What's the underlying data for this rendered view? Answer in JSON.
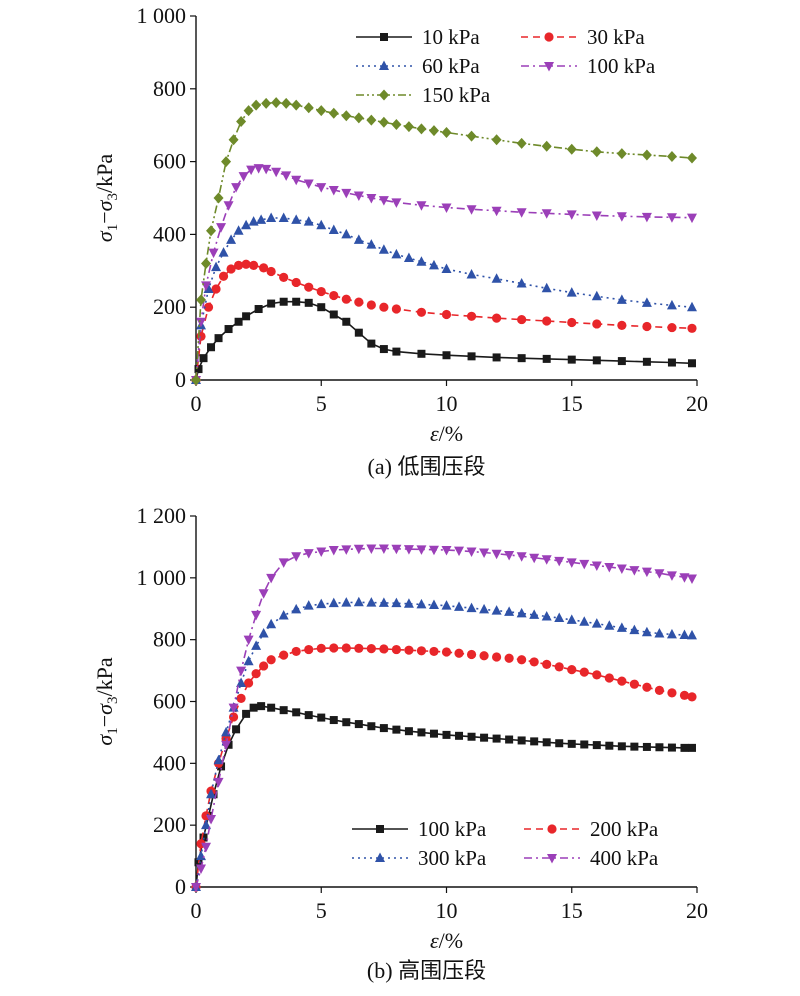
{
  "chart_data": [
    {
      "type": "line",
      "caption": "(a) 低围压段",
      "xlabel": "ε/%",
      "ylabel": "σ1−σ3/kPa",
      "xlim": [
        0,
        20
      ],
      "ylim": [
        0,
        1000
      ],
      "xticks": [
        "0",
        "5",
        "10",
        "15",
        "20"
      ],
      "yticks": [
        "0",
        "200",
        "400",
        "600",
        "800",
        "1 000"
      ],
      "legend_position": "top-right",
      "grid": false,
      "series": [
        {
          "name": "10 kPa",
          "color": "#1a1a1a",
          "marker": "square",
          "dash": "solid",
          "x": [
            0,
            0.1,
            0.3,
            0.6,
            0.9,
            1.3,
            1.7,
            2.0,
            2.5,
            3.0,
            3.5,
            4.0,
            4.5,
            5.0,
            5.5,
            6.0,
            6.5,
            7.0,
            7.5,
            8.0,
            9.0,
            10.0,
            11.0,
            12.0,
            13.0,
            14.0,
            15.0,
            16.0,
            17.0,
            18.0,
            19.0,
            19.8
          ],
          "y": [
            0,
            30,
            60,
            90,
            115,
            140,
            160,
            175,
            195,
            210,
            215,
            215,
            212,
            200,
            180,
            160,
            130,
            100,
            85,
            78,
            72,
            68,
            65,
            62,
            60,
            58,
            56,
            54,
            52,
            50,
            48,
            46
          ]
        },
        {
          "name": "30 kPa",
          "color": "#e8262a",
          "marker": "circle",
          "dash": "dash",
          "x": [
            0,
            0.2,
            0.5,
            0.8,
            1.1,
            1.4,
            1.7,
            2.0,
            2.3,
            2.7,
            3.0,
            3.5,
            4.0,
            4.5,
            5.0,
            5.5,
            6.0,
            6.5,
            7.0,
            7.5,
            8.0,
            9.0,
            10.0,
            11.0,
            12.0,
            13.0,
            14.0,
            15.0,
            16.0,
            17.0,
            18.0,
            19.0,
            19.8
          ],
          "y": [
            0,
            120,
            200,
            250,
            285,
            305,
            315,
            318,
            315,
            308,
            298,
            282,
            268,
            255,
            243,
            232,
            222,
            214,
            206,
            200,
            195,
            186,
            180,
            175,
            170,
            166,
            162,
            158,
            154,
            150,
            147,
            144,
            142
          ]
        },
        {
          "name": "60 kPa",
          "color": "#2f52a8",
          "marker": "triangle-up",
          "dash": "dot",
          "x": [
            0,
            0.2,
            0.5,
            0.8,
            1.1,
            1.4,
            1.7,
            2.0,
            2.3,
            2.6,
            3.0,
            3.5,
            4.0,
            4.5,
            5.0,
            5.5,
            6.0,
            6.5,
            7.0,
            7.5,
            8.0,
            8.5,
            9.0,
            9.5,
            10.0,
            11.0,
            12.0,
            13.0,
            14.0,
            15.0,
            16.0,
            17.0,
            18.0,
            19.0,
            19.8
          ],
          "y": [
            0,
            150,
            250,
            310,
            350,
            385,
            410,
            425,
            435,
            440,
            445,
            445,
            440,
            435,
            425,
            412,
            400,
            385,
            372,
            358,
            345,
            335,
            325,
            315,
            305,
            290,
            278,
            265,
            252,
            240,
            230,
            220,
            212,
            205,
            200
          ]
        },
        {
          "name": "100 kPa",
          "color": "#9b3fb8",
          "marker": "triangle-down",
          "dash": "dashdot",
          "x": [
            0,
            0.2,
            0.4,
            0.7,
            1.0,
            1.3,
            1.6,
            1.9,
            2.2,
            2.5,
            2.8,
            3.2,
            3.6,
            4.0,
            4.5,
            5.0,
            5.5,
            6.0,
            6.5,
            7.0,
            7.5,
            8.0,
            9.0,
            10.0,
            11.0,
            12.0,
            13.0,
            14.0,
            15.0,
            16.0,
            17.0,
            18.0,
            19.0,
            19.8
          ],
          "y": [
            0,
            160,
            260,
            350,
            420,
            480,
            530,
            560,
            578,
            582,
            580,
            572,
            562,
            550,
            540,
            530,
            522,
            514,
            507,
            500,
            494,
            488,
            480,
            474,
            469,
            465,
            461,
            458,
            455,
            452,
            450,
            448,
            447,
            446
          ]
        },
        {
          "name": "150 kPa",
          "color": "#6e8a2a",
          "marker": "diamond",
          "dash": "dashdotdot",
          "x": [
            0,
            0.2,
            0.4,
            0.6,
            0.9,
            1.2,
            1.5,
            1.8,
            2.1,
            2.4,
            2.8,
            3.2,
            3.6,
            4.0,
            4.5,
            5.0,
            5.5,
            6.0,
            6.5,
            7.0,
            7.5,
            8.0,
            8.5,
            9.0,
            9.5,
            10.0,
            11.0,
            12.0,
            13.0,
            14.0,
            15.0,
            16.0,
            17.0,
            18.0,
            19.0,
            19.8
          ],
          "y": [
            0,
            220,
            320,
            410,
            500,
            600,
            660,
            710,
            740,
            755,
            760,
            762,
            760,
            755,
            748,
            740,
            733,
            726,
            720,
            714,
            708,
            702,
            696,
            690,
            685,
            680,
            670,
            660,
            650,
            642,
            634,
            627,
            622,
            618,
            614,
            610
          ]
        }
      ]
    },
    {
      "type": "line",
      "caption": "(b) 高围压段",
      "xlabel": "ε/%",
      "ylabel": "σ1−σ3/kPa",
      "xlim": [
        0,
        20
      ],
      "ylim": [
        0,
        1200
      ],
      "xticks": [
        "0",
        "5",
        "10",
        "15",
        "20"
      ],
      "yticks": [
        "0",
        "200",
        "400",
        "600",
        "800",
        "1 000",
        "1 200"
      ],
      "legend_position": "bottom-right",
      "grid": false,
      "series": [
        {
          "name": "100 kPa",
          "color": "#1a1a1a",
          "marker": "square",
          "dash": "solid",
          "x": [
            0,
            0.1,
            0.3,
            0.5,
            0.7,
            1.0,
            1.3,
            1.6,
            2.0,
            2.3,
            2.6,
            3.0,
            3.5,
            4.0,
            4.5,
            5.0,
            5.5,
            6.0,
            6.5,
            7.0,
            7.5,
            8.0,
            8.5,
            9.0,
            9.5,
            10.0,
            10.5,
            11.0,
            11.5,
            12.0,
            12.5,
            13.0,
            13.5,
            14.0,
            14.5,
            15.0,
            15.5,
            16.0,
            16.5,
            17.0,
            17.5,
            18.0,
            18.5,
            19.0,
            19.5,
            19.8
          ],
          "y": [
            0,
            80,
            160,
            230,
            300,
            390,
            460,
            510,
            560,
            580,
            585,
            580,
            572,
            565,
            556,
            548,
            540,
            533,
            527,
            520,
            514,
            509,
            504,
            500,
            496,
            492,
            489,
            486,
            483,
            480,
            477,
            474,
            471,
            468,
            465,
            463,
            461,
            459,
            457,
            455,
            454,
            453,
            452,
            451,
            450,
            450
          ]
        },
        {
          "name": "200 kPa",
          "color": "#e8262a",
          "marker": "circle",
          "dash": "dash",
          "x": [
            0,
            0.2,
            0.4,
            0.6,
            0.9,
            1.2,
            1.5,
            1.8,
            2.1,
            2.4,
            2.7,
            3.0,
            3.5,
            4.0,
            4.5,
            5.0,
            5.5,
            6.0,
            6.5,
            7.0,
            7.5,
            8.0,
            8.5,
            9.0,
            9.5,
            10.0,
            10.5,
            11.0,
            11.5,
            12.0,
            12.5,
            13.0,
            13.5,
            14.0,
            14.5,
            15.0,
            15.5,
            16.0,
            16.5,
            17.0,
            17.5,
            18.0,
            18.5,
            19.0,
            19.5,
            19.8
          ],
          "y": [
            0,
            140,
            230,
            310,
            400,
            480,
            550,
            610,
            660,
            690,
            715,
            735,
            750,
            762,
            768,
            772,
            773,
            773,
            772,
            771,
            770,
            768,
            766,
            764,
            762,
            760,
            756,
            752,
            748,
            744,
            740,
            735,
            728,
            720,
            712,
            703,
            695,
            686,
            676,
            666,
            656,
            646,
            636,
            628,
            620,
            615
          ]
        },
        {
          "name": "300 kPa",
          "color": "#2f52a8",
          "marker": "triangle-up",
          "dash": "dot",
          "x": [
            0,
            0.2,
            0.4,
            0.6,
            0.9,
            1.2,
            1.5,
            1.8,
            2.1,
            2.4,
            2.7,
            3.0,
            3.5,
            4.0,
            4.5,
            5.0,
            5.5,
            6.0,
            6.5,
            7.0,
            7.5,
            8.0,
            8.5,
            9.0,
            9.5,
            10.0,
            10.5,
            11.0,
            11.5,
            12.0,
            12.5,
            13.0,
            13.5,
            14.0,
            14.5,
            15.0,
            15.5,
            16.0,
            16.5,
            17.0,
            17.5,
            18.0,
            18.5,
            19.0,
            19.5,
            19.8
          ],
          "y": [
            0,
            100,
            200,
            300,
            410,
            500,
            580,
            660,
            730,
            780,
            820,
            850,
            878,
            898,
            910,
            915,
            918,
            920,
            921,
            920,
            919,
            918,
            916,
            914,
            912,
            910,
            906,
            902,
            898,
            894,
            890,
            885,
            880,
            875,
            870,
            864,
            858,
            852,
            845,
            838,
            831,
            824,
            820,
            817,
            815,
            814
          ]
        },
        {
          "name": "400 kPa",
          "color": "#9b3fb8",
          "marker": "triangle-down",
          "dash": "dashdot",
          "x": [
            0,
            0.2,
            0.4,
            0.6,
            0.9,
            1.2,
            1.5,
            1.8,
            2.1,
            2.4,
            2.7,
            3.0,
            3.5,
            4.0,
            4.5,
            5.0,
            5.5,
            6.0,
            6.5,
            7.0,
            7.5,
            8.0,
            8.5,
            9.0,
            9.5,
            10.0,
            10.5,
            11.0,
            11.5,
            12.0,
            12.5,
            13.0,
            13.5,
            14.0,
            14.5,
            15.0,
            15.5,
            16.0,
            16.5,
            17.0,
            17.5,
            18.0,
            18.5,
            19.0,
            19.5,
            19.8
          ],
          "y": [
            0,
            60,
            130,
            220,
            340,
            460,
            580,
            700,
            800,
            880,
            950,
            1000,
            1050,
            1070,
            1080,
            1085,
            1090,
            1092,
            1094,
            1095,
            1095,
            1094,
            1093,
            1092,
            1091,
            1090,
            1088,
            1085,
            1082,
            1078,
            1074,
            1070,
            1065,
            1060,
            1055,
            1050,
            1045,
            1040,
            1035,
            1030,
            1025,
            1020,
            1015,
            1008,
            1002,
            998
          ]
        }
      ]
    }
  ]
}
